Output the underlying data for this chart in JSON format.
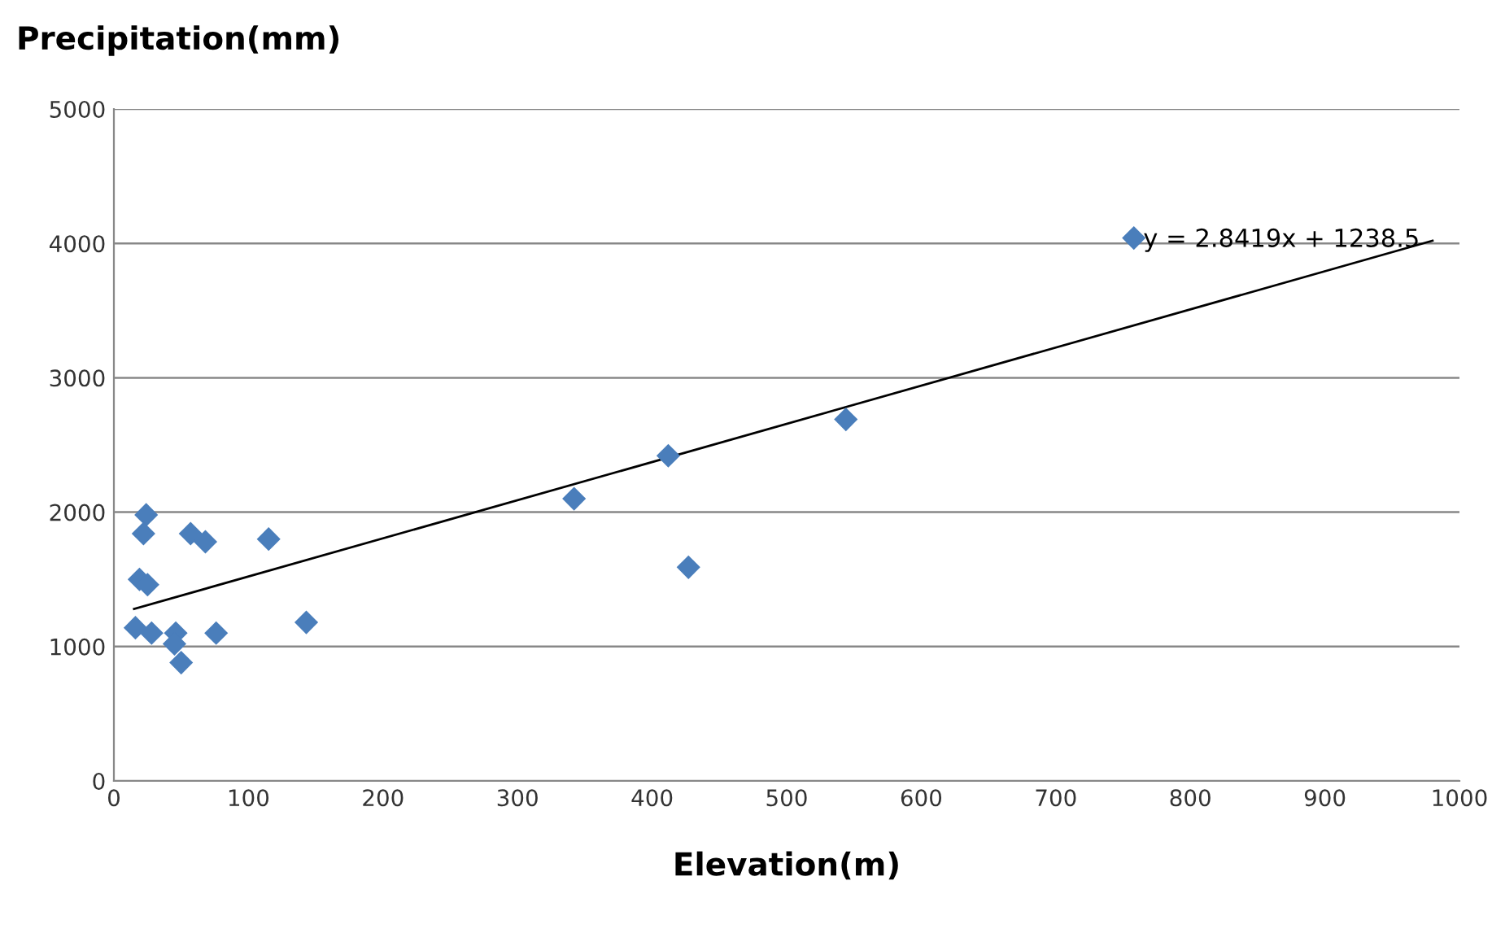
{
  "chart_data": {
    "type": "scatter",
    "xlabel": "Elevation(m)",
    "ylabel": "Precipitation(mm)",
    "xlim": [
      0,
      1000
    ],
    "xticks": [
      0,
      100,
      200,
      300,
      400,
      500,
      600,
      700,
      800,
      900,
      1000
    ],
    "ylim": [
      0,
      5000
    ],
    "yticks": [
      0,
      1000,
      2000,
      3000,
      4000,
      5000
    ],
    "grid": "y",
    "series": [
      {
        "color": "#4a7ebb",
        "marker": "diamond",
        "x": [
          24,
          22,
          57,
          68,
          115,
          19,
          25,
          16,
          28,
          46,
          45,
          50,
          76,
          143,
          342,
          412,
          427,
          544,
          758
        ],
        "values": [
          1980,
          1840,
          1840,
          1780,
          1800,
          1500,
          1460,
          1140,
          1100,
          1100,
          1020,
          880,
          1100,
          1180,
          2100,
          2420,
          1590,
          2690,
          4040
        ]
      },
      {
        "type": "line",
        "color": "#000000",
        "x": [
          15,
          980
        ],
        "values": [
          1280,
          4020
        ]
      }
    ],
    "annotations": [
      "y = 2.8419x + 1238.5"
    ]
  }
}
